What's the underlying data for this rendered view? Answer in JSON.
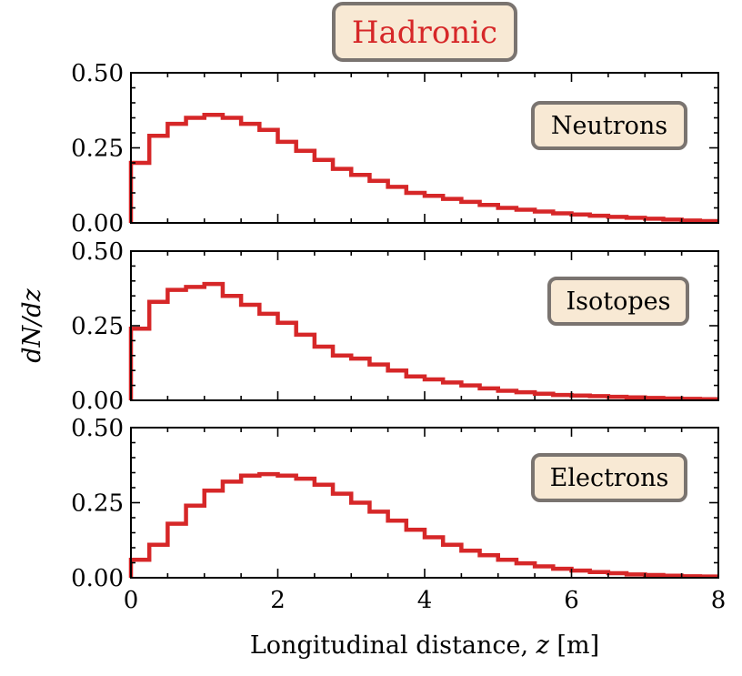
{
  "title": "Hadronic",
  "colors": {
    "line": "#d62728",
    "title": "#d62728",
    "box_fill": "#f8e9d4",
    "box_edge": "#7a7470"
  },
  "y_axis_label": "dN/dz",
  "x_axis_label": "Longitudinal distance, z [m]",
  "chart_data": [
    {
      "type": "step",
      "panel": "top",
      "label": "Neutrons",
      "xlim": [
        0,
        8
      ],
      "ylim": [
        0,
        0.5
      ],
      "bin_width": 0.25,
      "xticks": [
        0,
        2,
        4,
        6,
        8
      ],
      "yticks": [
        "0.00",
        "0.25",
        "0.50"
      ],
      "values": [
        0.2,
        0.29,
        0.33,
        0.35,
        0.36,
        0.35,
        0.33,
        0.31,
        0.27,
        0.24,
        0.21,
        0.18,
        0.16,
        0.14,
        0.12,
        0.1,
        0.09,
        0.08,
        0.07,
        0.06,
        0.05,
        0.044,
        0.038,
        0.032,
        0.028,
        0.024,
        0.02,
        0.017,
        0.014,
        0.011,
        0.008,
        0.006
      ]
    },
    {
      "type": "step",
      "panel": "middle",
      "label": "Isotopes",
      "xlim": [
        0,
        8
      ],
      "ylim": [
        0,
        0.5
      ],
      "bin_width": 0.25,
      "xticks": [
        0,
        2,
        4,
        6,
        8
      ],
      "yticks": [
        "0.00",
        "0.25",
        "0.50"
      ],
      "values": [
        0.24,
        0.33,
        0.37,
        0.38,
        0.39,
        0.35,
        0.32,
        0.29,
        0.26,
        0.22,
        0.18,
        0.15,
        0.14,
        0.12,
        0.1,
        0.08,
        0.07,
        0.06,
        0.05,
        0.04,
        0.032,
        0.027,
        0.022,
        0.018,
        0.016,
        0.014,
        0.012,
        0.01,
        0.008,
        0.006,
        0.005,
        0.004
      ]
    },
    {
      "type": "step",
      "panel": "bottom",
      "label": "Electrons",
      "xlim": [
        0,
        8
      ],
      "ylim": [
        0,
        0.5
      ],
      "bin_width": 0.25,
      "xticks": [
        0,
        2,
        4,
        6,
        8
      ],
      "xtick_labels": [
        "0",
        "2",
        "4",
        "6",
        "8"
      ],
      "yticks": [
        "0.00",
        "0.25",
        "0.50"
      ],
      "values": [
        0.06,
        0.11,
        0.18,
        0.24,
        0.29,
        0.32,
        0.34,
        0.345,
        0.34,
        0.33,
        0.31,
        0.28,
        0.25,
        0.22,
        0.19,
        0.16,
        0.135,
        0.11,
        0.09,
        0.075,
        0.06,
        0.048,
        0.038,
        0.03,
        0.024,
        0.019,
        0.015,
        0.011,
        0.009,
        0.007,
        0.005,
        0.004
      ]
    }
  ]
}
